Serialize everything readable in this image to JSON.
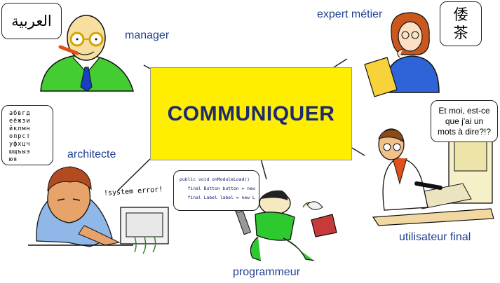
{
  "center": {
    "title": "COMMUNIQUER"
  },
  "roles": {
    "manager": "manager",
    "expert": "expert métier",
    "architecte": "architecte",
    "utilisateur": "utilisateur final",
    "programmeur": "programmeur"
  },
  "bubbles": {
    "manager_text": "العربية",
    "expert_line1": "倭",
    "expert_line2": "茶",
    "architecte_lines": [
      "абвгд",
      "еёжзи",
      "йклмн",
      "опрст",
      "уфхцч",
      "шщъыэ",
      "юя"
    ],
    "utilisateur_lines": [
      "Et moi, est-ce",
      "que j'ai un",
      "mots à dire?!?"
    ],
    "code_lines": [
      "public void onModuleLoad()",
      "   final Button button = new",
      "   final Label label = new L"
    ],
    "error_text": "!system error!"
  },
  "colors": {
    "box": "#ffee00",
    "role_text": "#1f3f8f",
    "title_text": "#1b2b6e"
  }
}
